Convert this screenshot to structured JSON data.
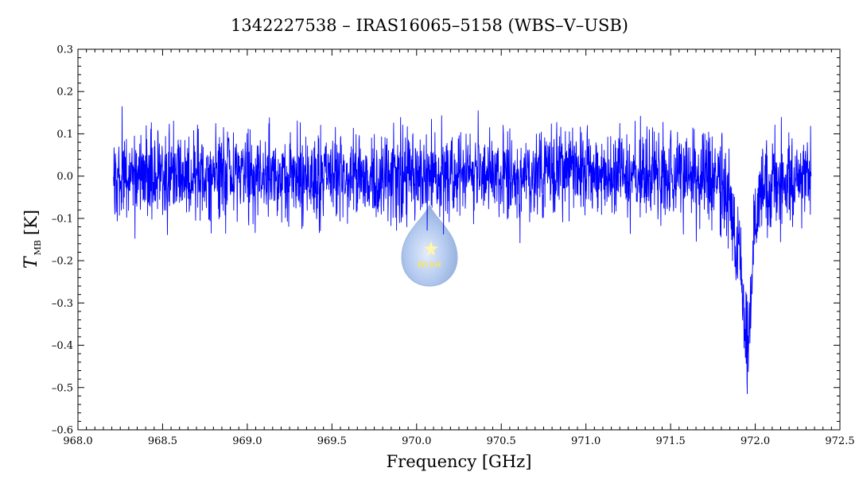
{
  "chart_data": {
    "type": "line",
    "title": "1342227538 – IRAS16065–5158 (WBS–V–USB)",
    "xlabel": "Frequency [GHz]",
    "ylabel": {
      "main": "T",
      "sub": "MB",
      "unit": "[K]"
    },
    "xlim": [
      968.0,
      972.5
    ],
    "ylim": [
      -0.6,
      0.3
    ],
    "xticks": [
      "968.0",
      "968.5",
      "969.0",
      "969.5",
      "970.0",
      "970.5",
      "971.0",
      "971.5",
      "972.0",
      "972.5"
    ],
    "yticks": [
      "0.3",
      "0.2",
      "0.1",
      "0.0",
      "–0.1",
      "–0.2",
      "–0.3",
      "–0.4",
      "–0.5",
      "–0.6"
    ],
    "grid": false,
    "series": [
      {
        "color": "#0000ff",
        "x_range": [
          968.21,
          972.33
        ],
        "noise_rms_K": 0.05,
        "baseline_K": 0.0,
        "x": [
          968.21,
          968.25,
          968.3,
          968.5,
          968.8,
          969.0,
          969.5,
          970.0,
          970.5,
          971.0,
          971.5,
          971.7,
          971.8,
          971.85,
          971.88,
          971.91,
          971.93,
          971.95,
          971.97,
          971.99,
          972.02,
          972.1,
          972.2,
          972.33
        ],
        "y": [
          0.0,
          0.0,
          0.0,
          0.0,
          0.0,
          0.0,
          0.0,
          0.0,
          0.0,
          0.0,
          0.0,
          0.0,
          -0.03,
          -0.07,
          -0.12,
          -0.2,
          -0.3,
          -0.4,
          -0.35,
          -0.15,
          -0.05,
          -0.02,
          0.0,
          0.0
        ]
      }
    ]
  },
  "logo": {
    "text": "WISH"
  }
}
